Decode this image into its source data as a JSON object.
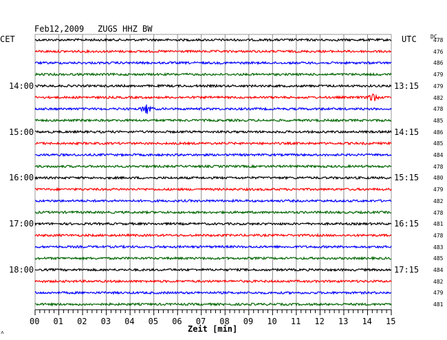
{
  "header": {
    "date": "Feb12,2009",
    "station": "ZUGS HHZ BW",
    "left_zone": "CET",
    "right_zone": "UTC",
    "dc_label": "DC"
  },
  "axis": {
    "xlabel": "Zeit [min]",
    "ticks": [
      "00",
      "01",
      "02",
      "03",
      "04",
      "05",
      "06",
      "07",
      "08",
      "09",
      "10",
      "11",
      "12",
      "13",
      "14",
      "15"
    ]
  },
  "left_time_labels": [
    "14:00",
    "15:00",
    "16:00",
    "17:00",
    "18:00"
  ],
  "right_time_labels": [
    "13:15",
    "14:15",
    "15:15",
    "16:15",
    "17:15"
  ],
  "dc_values": [
    "478",
    "476",
    "486",
    "479",
    "479",
    "482",
    "478",
    "485",
    "486",
    "485",
    "484",
    "478",
    "480",
    "479",
    "482",
    "478",
    "481",
    "478",
    "483",
    "485",
    "484",
    "482",
    "479",
    "481"
  ],
  "trace_colors": [
    "#000000",
    "#ff0000",
    "#0000ff",
    "#006600"
  ],
  "events": [
    {
      "trace": 5,
      "minute": 14.2,
      "amplitude": 6
    },
    {
      "trace": 6,
      "minute": 4.7,
      "amplitude": 7
    }
  ],
  "corner_mark": "˄"
}
